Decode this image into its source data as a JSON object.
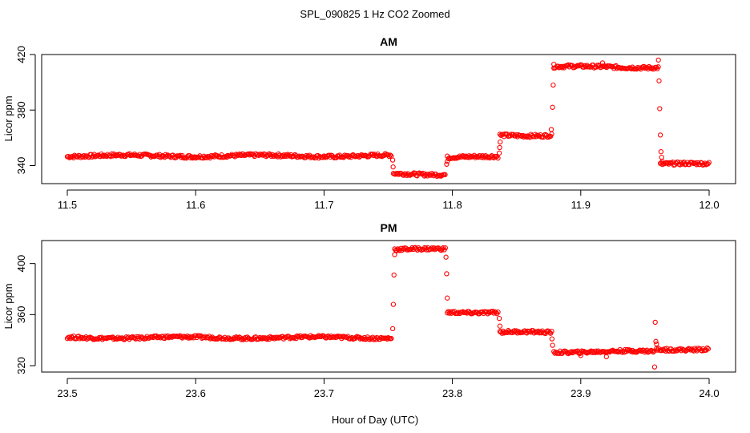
{
  "figure": {
    "title": "SPL_090825  1 Hz CO2 Zoomed",
    "xlabel": "Hour of Day (UTC)"
  },
  "colors": {
    "points": "#ff0000",
    "axes": "#000000",
    "background": "#ffffff"
  },
  "chart_data": [
    {
      "type": "scatter",
      "title": "AM",
      "xlabel": "",
      "ylabel": "Licor ppm",
      "xlim": [
        11.5,
        12.0
      ],
      "ylim": [
        327,
        420
      ],
      "x_ticks": [
        "11.5",
        "11.6",
        "11.7",
        "11.8",
        "11.9",
        "12.0"
      ],
      "y_ticks": [
        "340",
        "380",
        "420"
      ],
      "grid": false,
      "segments": [
        {
          "x_start": 11.5,
          "x_end": 11.753,
          "y": 347
        },
        {
          "x_start": 11.754,
          "x_end": 11.795,
          "y": 334
        },
        {
          "x_start": 11.796,
          "x_end": 11.836,
          "y": 346
        },
        {
          "x_start": 11.837,
          "x_end": 11.878,
          "y": 362
        },
        {
          "x_start": 11.879,
          "x_end": 11.961,
          "y": 411
        },
        {
          "x_start": 11.962,
          "x_end": 12.0,
          "y": 341
        }
      ],
      "transition_points": [
        {
          "x": 11.7535,
          "y": 344
        },
        {
          "x": 11.7538,
          "y": 339
        },
        {
          "x": 11.7955,
          "y": 341
        },
        {
          "x": 11.796,
          "y": 343
        },
        {
          "x": 11.8365,
          "y": 349
        },
        {
          "x": 11.8368,
          "y": 353
        },
        {
          "x": 11.8372,
          "y": 357
        },
        {
          "x": 11.877,
          "y": 366
        },
        {
          "x": 11.878,
          "y": 382
        },
        {
          "x": 11.8785,
          "y": 398
        },
        {
          "x": 11.879,
          "y": 413
        },
        {
          "x": 11.917,
          "y": 414
        },
        {
          "x": 11.9605,
          "y": 416
        },
        {
          "x": 11.961,
          "y": 401
        },
        {
          "x": 11.9615,
          "y": 381
        },
        {
          "x": 11.962,
          "y": 362
        },
        {
          "x": 11.9625,
          "y": 350
        },
        {
          "x": 11.963,
          "y": 346
        },
        {
          "x": 11.9635,
          "y": 343
        }
      ]
    },
    {
      "type": "scatter",
      "title": "PM",
      "xlabel": "",
      "ylabel": "Licor ppm",
      "xlim": [
        23.5,
        24.0
      ],
      "ylim": [
        315,
        418
      ],
      "x_ticks": [
        "23.5",
        "23.6",
        "23.7",
        "23.8",
        "23.9",
        "24.0"
      ],
      "y_ticks": [
        "320",
        "360",
        "400"
      ],
      "grid": false,
      "segments": [
        {
          "x_start": 23.5,
          "x_end": 23.753,
          "y": 342
        },
        {
          "x_start": 23.755,
          "x_end": 23.795,
          "y": 411
        },
        {
          "x_start": 23.796,
          "x_end": 23.836,
          "y": 362
        },
        {
          "x_start": 23.837,
          "x_end": 23.878,
          "y": 346
        },
        {
          "x_start": 23.879,
          "x_end": 23.958,
          "y": 331
        },
        {
          "x_start": 23.959,
          "x_end": 24.0,
          "y": 333
        }
      ],
      "transition_points": [
        {
          "x": 23.7535,
          "y": 349
        },
        {
          "x": 23.754,
          "y": 368
        },
        {
          "x": 23.7545,
          "y": 391
        },
        {
          "x": 23.755,
          "y": 407
        },
        {
          "x": 23.795,
          "y": 405
        },
        {
          "x": 23.7955,
          "y": 392
        },
        {
          "x": 23.796,
          "y": 373
        },
        {
          "x": 23.8365,
          "y": 357
        },
        {
          "x": 23.837,
          "y": 351
        },
        {
          "x": 23.8775,
          "y": 341
        },
        {
          "x": 23.878,
          "y": 336
        },
        {
          "x": 23.9,
          "y": 328
        },
        {
          "x": 23.92,
          "y": 327
        },
        {
          "x": 23.9575,
          "y": 319
        },
        {
          "x": 23.958,
          "y": 354
        },
        {
          "x": 23.9585,
          "y": 339
        },
        {
          "x": 23.959,
          "y": 337
        }
      ]
    }
  ]
}
